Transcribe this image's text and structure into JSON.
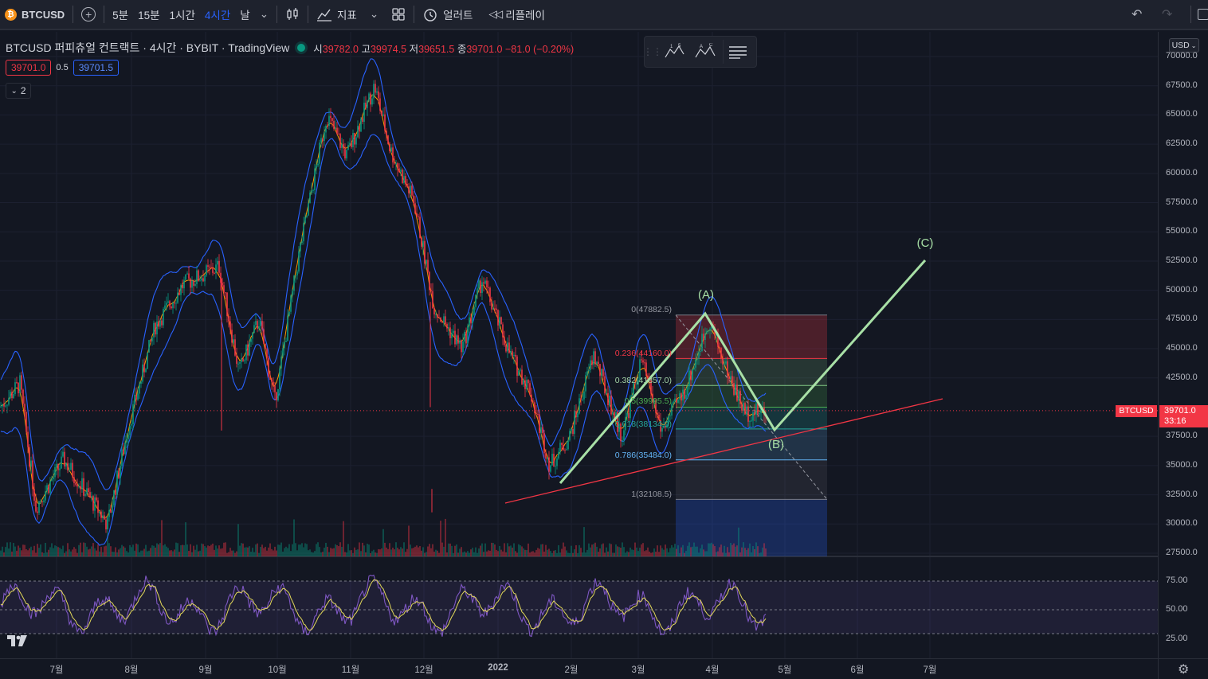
{
  "toolbar": {
    "symbol": "BTCUSD",
    "intervals": [
      "5분",
      "15분",
      "1시간",
      "4시간",
      "날"
    ],
    "active_interval": "4시간",
    "indicators_label": "지표",
    "alert_label": "얼러트",
    "replay_label": "리플레이"
  },
  "legend": {
    "title": "BTCUSD 퍼피츄얼 컨트랙트 · 4시간 · BYBIT · TradingView",
    "open_label": "시",
    "open": "39782.0",
    "high_label": "고",
    "high": "39974.5",
    "low_label": "저",
    "low": "39651.5",
    "close_label": "종",
    "close": "39701.0",
    "change": "−81.0 (−0.20%)",
    "bid": "39701.0",
    "spread": "0.5",
    "ask": "39701.5",
    "collapsed_count": "2"
  },
  "price_axis": {
    "currency": "USD",
    "labels": [
      "70000.0",
      "67500.0",
      "65000.0",
      "62500.0",
      "60000.0",
      "57500.0",
      "55000.0",
      "52500.0",
      "50000.0",
      "47500.0",
      "45000.0",
      "42500.0",
      "37500.0",
      "35000.0",
      "32500.0",
      "30000.0",
      "27500.0"
    ],
    "last_price": "39701.0",
    "countdown": "33:16",
    "symbol_tag": "BTCUSD"
  },
  "time_axis": {
    "labels": [
      "7월",
      "8월",
      "9월",
      "10월",
      "11월",
      "12월",
      "2022",
      "2월",
      "3월",
      "4월",
      "5월",
      "6월",
      "7월"
    ]
  },
  "fib": {
    "levels": [
      {
        "text": "0(47882.5)",
        "color": "#9598a1"
      },
      {
        "text": "0.236(44160.0)",
        "color": "#f23645"
      },
      {
        "text": "0.382(41857.0)",
        "color": "#81c784"
      },
      {
        "text": "0.5(39995.5)",
        "color": "#4caf50"
      },
      {
        "text": "0.618(38134.0)",
        "color": "#26a69a"
      },
      {
        "text": "0.786(35484.0)",
        "color": "#64b5f6"
      },
      {
        "text": "1(32108.5)",
        "color": "#9598a1"
      }
    ]
  },
  "waves": {
    "a": "(A)",
    "b": "(B)",
    "c": "(C)"
  },
  "rsi": {
    "labels": [
      "75.00",
      "50.00",
      "25.00"
    ]
  },
  "colors": {
    "background": "#131722",
    "up": "#089981",
    "down": "#f23645",
    "bands": "#2962ff",
    "wave": "#a8e0a6",
    "rsi": "#7e57c2"
  }
}
